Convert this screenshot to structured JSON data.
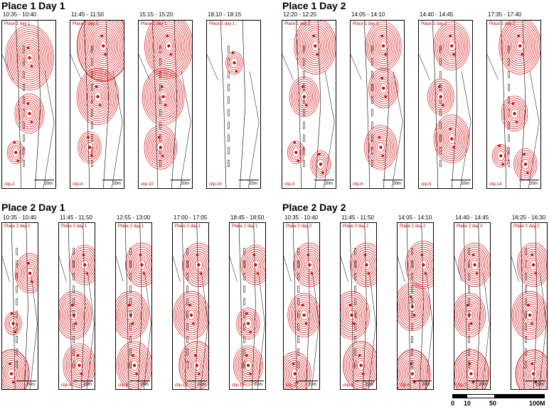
{
  "sections": [
    {
      "title": "Place 1 Day 1",
      "panels": [
        {
          "time": "10:35  -  10:40",
          "label": "Place 1 day 1",
          "clip": "clip-2",
          "scale": "20m",
          "blobs": [
            [
              0.5,
              0.22,
              14
            ],
            [
              0.5,
              0.55,
              8
            ],
            [
              0.25,
              0.78,
              4
            ]
          ]
        },
        {
          "time": "11:45  -  11:50",
          "label": "Place 1 day 1",
          "clip": "clip-4",
          "scale": "20m",
          "blobs": [
            [
              0.6,
              0.15,
              16
            ],
            [
              0.5,
              0.45,
              12
            ],
            [
              0.35,
              0.75,
              6
            ]
          ]
        },
        {
          "time": "15:15  -  15:20",
          "label": "Place 1 day 1",
          "clip": "clip-10",
          "scale": "20m",
          "blobs": [
            [
              0.55,
              0.15,
              14
            ],
            [
              0.45,
              0.45,
              12
            ],
            [
              0.4,
              0.75,
              9
            ]
          ]
        },
        {
          "time": "18:10  -  18:15",
          "label": "Place 1 day 1",
          "clip": "clip-15",
          "scale": "20m",
          "blobs": [
            [
              0.5,
              0.25,
              4
            ]
          ]
        }
      ]
    },
    {
      "title": "Place 1 Day 2",
      "panels": [
        {
          "time": "12:20  -  12:25",
          "label": "Place 1 day 2",
          "clip": "clip-3",
          "scale": "20m",
          "blobs": [
            [
              0.6,
              0.15,
              12
            ],
            [
              0.4,
              0.45,
              8
            ],
            [
              0.7,
              0.85,
              5
            ],
            [
              0.25,
              0.78,
              4
            ]
          ]
        },
        {
          "time": "14:05  -  14:10",
          "label": "Place 1 day 2",
          "clip": "clip-6",
          "scale": "20m",
          "blobs": [
            [
              0.6,
              0.15,
              10
            ],
            [
              0.6,
              0.4,
              8
            ],
            [
              0.55,
              0.75,
              9
            ]
          ]
        },
        {
          "time": "14:40  -  14:45",
          "label": "Place 1 day 2",
          "clip": "clip-8",
          "scale": "20m",
          "blobs": [
            [
              0.6,
              0.15,
              10
            ],
            [
              0.4,
              0.45,
              7
            ],
            [
              0.6,
              0.7,
              10
            ]
          ]
        },
        {
          "time": "17:35  -  17:40",
          "label": "Place 1 day 2",
          "clip": "clip-14",
          "scale": "20m",
          "blobs": [
            [
              0.6,
              0.15,
              12
            ],
            [
              0.5,
              0.55,
              7
            ],
            [
              0.7,
              0.85,
              6
            ],
            [
              0.25,
              0.8,
              4
            ]
          ]
        }
      ]
    },
    {
      "title": "Place 2 Day 1",
      "panels": [
        {
          "time": "10:35  -  10:40",
          "label": "Place 2 day 1",
          "clip": "",
          "scale": "20m",
          "blobs": [
            [
              0.75,
              0.3,
              8
            ],
            [
              0.3,
              0.6,
              4
            ],
            [
              0.25,
              0.9,
              16
            ]
          ]
        },
        {
          "time": "11:45  -  11:50",
          "label": "Place 2 day 1",
          "clip": "clip-4",
          "scale": "20m",
          "blobs": [
            [
              0.7,
              0.25,
              8
            ],
            [
              0.4,
              0.55,
              10
            ],
            [
              0.55,
              0.85,
              9
            ]
          ]
        },
        {
          "time": "12:55  -  13:00",
          "label": "Place 2 day 1",
          "clip": "clip-6",
          "scale": "20m",
          "blobs": [
            [
              0.7,
              0.25,
              9
            ],
            [
              0.4,
              0.55,
              10
            ],
            [
              0.5,
              0.85,
              10
            ]
          ]
        },
        {
          "time": "17:00  -  17:05",
          "label": "Place 2 day 1",
          "clip": "clip-13",
          "scale": "20m",
          "blobs": [
            [
              0.7,
              0.25,
              9
            ],
            [
              0.5,
              0.55,
              10
            ],
            [
              0.65,
              0.85,
              11
            ]
          ]
        },
        {
          "time": "18:45  -  18:50",
          "label": "Place 2 day 1",
          "clip": "clip-16",
          "scale": "20m",
          "blobs": [
            [
              0.7,
              0.25,
              8
            ],
            [
              0.5,
              0.6,
              6
            ],
            [
              0.5,
              0.85,
              8
            ]
          ]
        }
      ]
    },
    {
      "title": "Place 2 Day 2",
      "panels": [
        {
          "time": "10:35  -  10:40",
          "label": "Place 2 day 2",
          "clip": "clip-2",
          "scale": "20m",
          "blobs": [
            [
              0.7,
              0.25,
              9
            ],
            [
              0.55,
              0.55,
              9
            ],
            [
              0.3,
              0.9,
              9
            ]
          ]
        },
        {
          "time": "11:45  -  11:50",
          "label": "Place 2 day 2",
          "clip": "clip-4",
          "scale": "20m",
          "blobs": [
            [
              0.7,
              0.25,
              9
            ],
            [
              0.3,
              0.55,
              10
            ],
            [
              0.55,
              0.85,
              11
            ]
          ]
        },
        {
          "time": "14:05  -  14:10",
          "label": "Place 2 day 2",
          "clip": "clip-6",
          "scale": "20m",
          "blobs": [
            [
              0.7,
              0.25,
              10
            ],
            [
              0.4,
              0.5,
              10
            ],
            [
              0.4,
              0.9,
              16
            ]
          ]
        },
        {
          "time": "14:40  -  14:45",
          "label": "Place 2 day 2",
          "clip": "clip-7",
          "scale": "20m",
          "blobs": [
            [
              0.55,
              0.25,
              9
            ],
            [
              0.4,
              0.55,
              9
            ],
            [
              0.45,
              0.9,
              14
            ]
          ]
        },
        {
          "time": "16:25  -  16:30",
          "label": "Place 2 day 2",
          "clip": "",
          "scale": "20m",
          "blobs": [
            [
              0.6,
              0.25,
              9
            ],
            [
              0.5,
              0.55,
              10
            ],
            [
              0.6,
              0.9,
              16
            ]
          ]
        }
      ]
    }
  ],
  "scalebar": {
    "labels": [
      "0",
      "10",
      "50",
      "100M"
    ]
  },
  "colors": {
    "contour": "#d40000",
    "point": "#e00000",
    "map": "#000000"
  }
}
